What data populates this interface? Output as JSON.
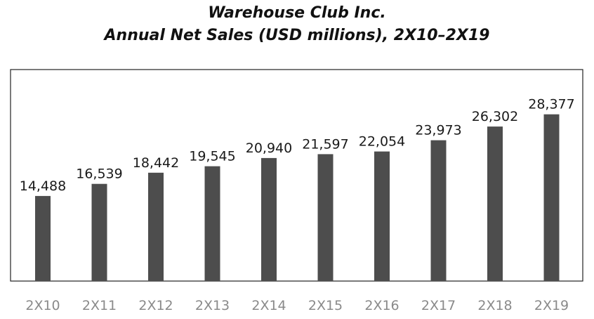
{
  "header": {
    "title_line1": "Warehouse Club Inc.",
    "title_line2": "Annual Net Sales (USD millions), 2X10–2X19"
  },
  "chart_data": {
    "type": "bar",
    "title": "Warehouse Club Inc. Annual Net Sales (USD millions), 2X10–2X19",
    "xlabel": "",
    "ylabel": "",
    "categories": [
      "2X10",
      "2X11",
      "2X12",
      "2X13",
      "2X14",
      "2X15",
      "2X16",
      "2X17",
      "2X18",
      "2X19"
    ],
    "values": [
      14488,
      16539,
      18442,
      19545,
      20940,
      21597,
      22054,
      23973,
      26302,
      28377
    ],
    "value_labels": [
      "14,488",
      "16,539",
      "18,442",
      "19,545",
      "20,940",
      "21,597",
      "22,054",
      "23,973",
      "26,302",
      "28,377"
    ],
    "ylim": [
      0,
      36000
    ],
    "grid": false,
    "legend": "none",
    "bar_color": "#4d4d4d",
    "tick_color": "#8a8a8a"
  }
}
